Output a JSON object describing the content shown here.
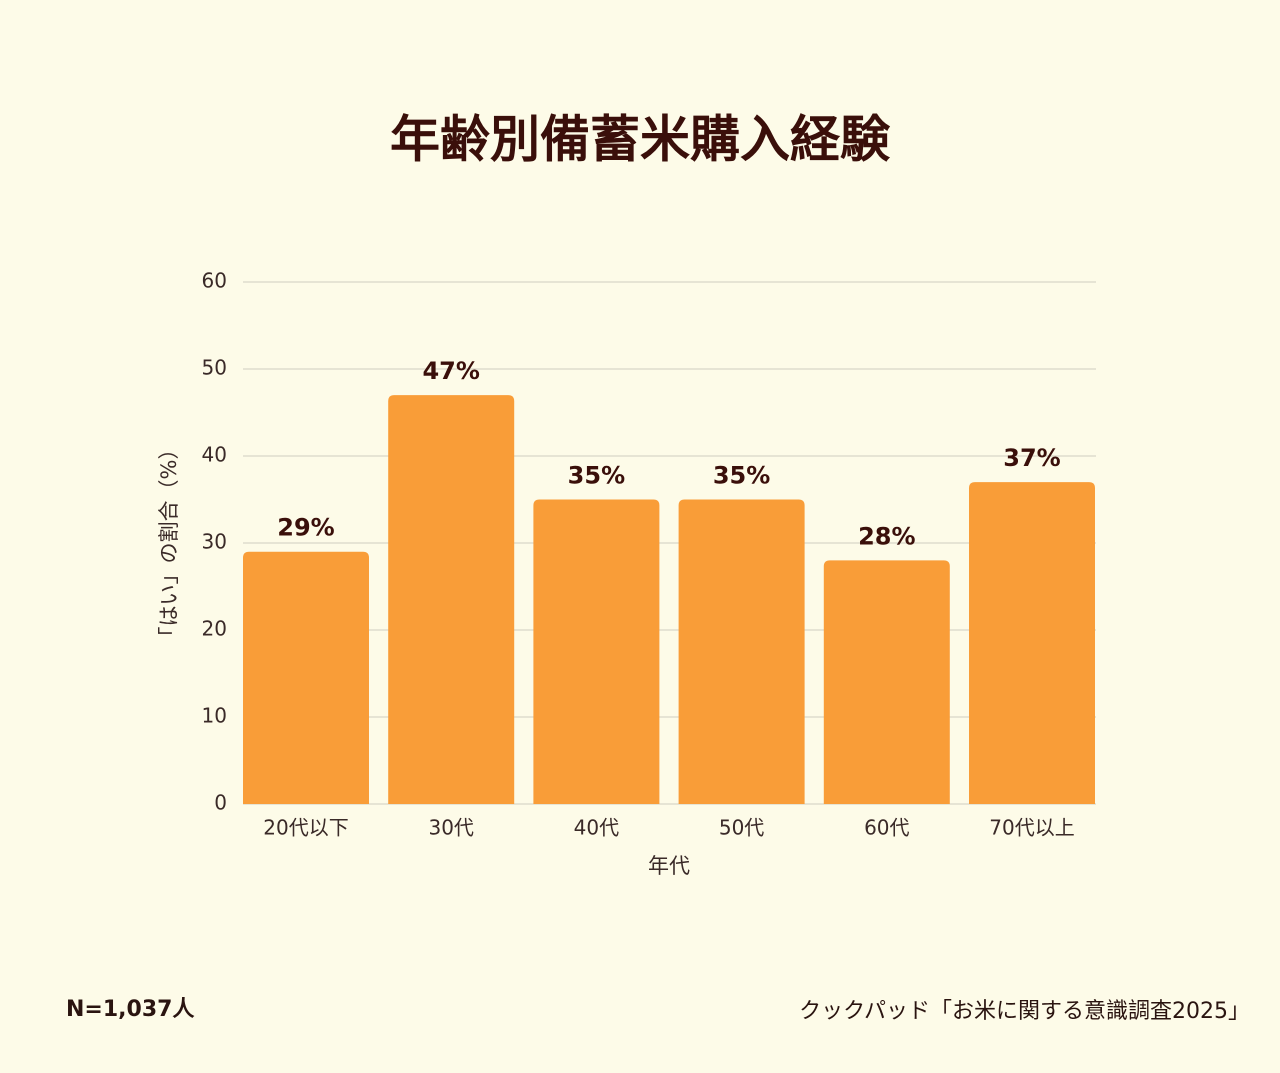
{
  "chart_data": {
    "type": "bar",
    "title": "年齢別備蓄米購入経験",
    "y_label": "「はい」の割合（%）",
    "x_label": "年代",
    "categories": [
      "20代以下",
      "30代",
      "40代",
      "50代",
      "60代",
      "70代以上"
    ],
    "values": [
      29,
      47,
      35,
      35,
      28,
      37
    ],
    "value_labels": [
      "29%",
      "47%",
      "35%",
      "35%",
      "28%",
      "37%"
    ],
    "color": "#f99d38",
    "ylim": [
      0,
      60
    ],
    "yticks": [
      0,
      10,
      20,
      30,
      40,
      50,
      60
    ],
    "grid": true,
    "note": "N=1,037人",
    "source": "クックパッド「お米に関する意識調査2025」"
  }
}
